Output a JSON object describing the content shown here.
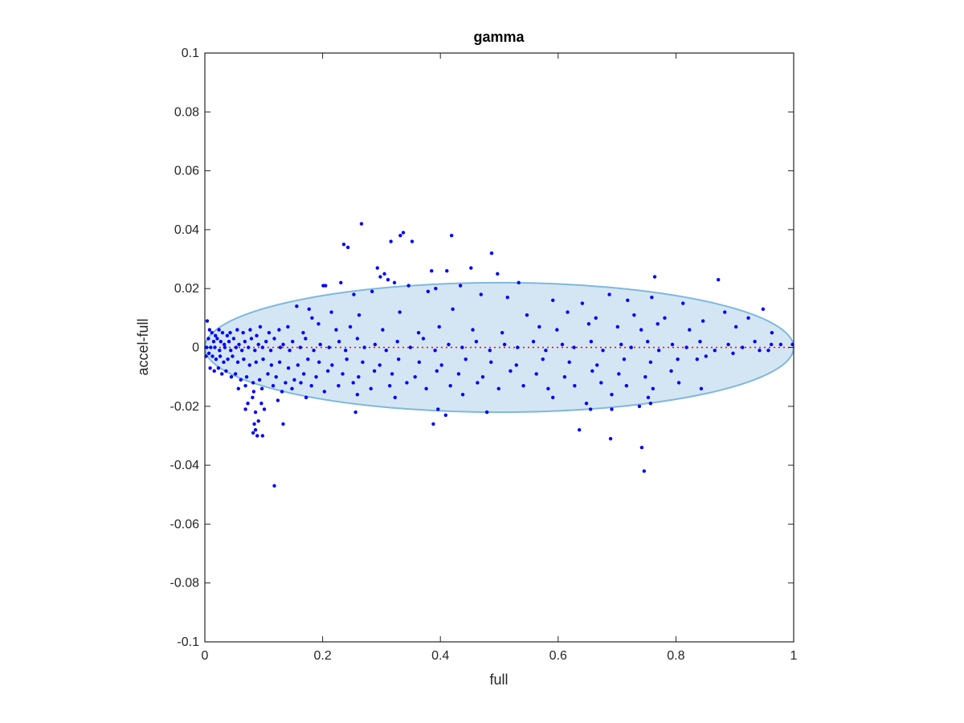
{
  "chart_data": {
    "type": "scatter",
    "title": "gamma",
    "xlabel": "full",
    "ylabel": "accel-full",
    "xlim": [
      0,
      1
    ],
    "ylim": [
      -0.1,
      0.1
    ],
    "x_ticks": [
      0,
      0.2,
      0.4,
      0.6,
      0.8,
      1
    ],
    "x_tick_labels": [
      "0",
      "0.2",
      "0.4",
      "0.6",
      "0.8",
      "1"
    ],
    "y_ticks": [
      -0.1,
      -0.08,
      -0.06,
      -0.04,
      -0.02,
      0,
      0.02,
      0.04,
      0.06,
      0.08,
      0.1
    ],
    "y_tick_labels": [
      "-0.1",
      "-0.08",
      "-0.06",
      "-0.04",
      "-0.02",
      "0",
      "0.02",
      "0.04",
      "0.06",
      "0.08",
      "0.1"
    ],
    "grid": false,
    "colors": {
      "points": "#0000ff",
      "ellipse_fill": "#d4e6f3",
      "ellipse_stroke": "#7fb8dc",
      "reference_line": "#ff0000"
    },
    "ellipse": {
      "center": [
        0.5,
        0
      ],
      "semi_x": 0.5,
      "semi_y": 0.022
    },
    "reference_line": {
      "y": 0,
      "x": [
        0,
        1
      ],
      "style": "dotted"
    },
    "series": [
      {
        "points": [
          [
            0.266,
            0.042
          ],
          [
            0.337,
            0.039
          ],
          [
            0.332,
            0.038
          ],
          [
            0.419,
            0.038
          ],
          [
            0.352,
            0.036
          ],
          [
            0.236,
            0.035
          ],
          [
            0.243,
            0.034
          ],
          [
            0.316,
            0.036
          ],
          [
            0.487,
            0.032
          ],
          [
            0.293,
            0.027
          ],
          [
            0.452,
            0.027
          ],
          [
            0.385,
            0.026
          ],
          [
            0.411,
            0.026
          ],
          [
            0.497,
            0.025
          ],
          [
            0.764,
            0.024
          ],
          [
            0.872,
            0.023
          ],
          [
            0.305,
            0.025
          ],
          [
            0.311,
            0.023
          ],
          [
            0.231,
            0.022
          ],
          [
            0.201,
            0.021
          ],
          [
            0.205,
            0.021
          ],
          [
            0.298,
            0.024
          ],
          [
            0.322,
            0.022
          ],
          [
            0.533,
            0.022
          ],
          [
            0.434,
            0.021
          ],
          [
            0.392,
            0.02
          ],
          [
            0.346,
            0.021
          ],
          [
            0.284,
            0.019
          ],
          [
            0.253,
            0.018
          ],
          [
            0.379,
            0.019
          ],
          [
            0.469,
            0.018
          ],
          [
            0.514,
            0.017
          ],
          [
            0.591,
            0.016
          ],
          [
            0.641,
            0.015
          ],
          [
            0.687,
            0.018
          ],
          [
            0.718,
            0.016
          ],
          [
            0.759,
            0.017
          ],
          [
            0.812,
            0.015
          ],
          [
            0.948,
            0.013
          ],
          [
            0.883,
            0.012
          ],
          [
            0.923,
            0.01
          ],
          [
            0.156,
            0.014
          ],
          [
            0.177,
            0.013
          ],
          [
            0.182,
            0.01
          ],
          [
            0.215,
            0.012
          ],
          [
            0.262,
            0.011
          ],
          [
            0.331,
            0.012
          ],
          [
            0.421,
            0.013
          ],
          [
            0.547,
            0.011
          ],
          [
            0.616,
            0.012
          ],
          [
            0.664,
            0.01
          ],
          [
            0.729,
            0.011
          ],
          [
            0.769,
            0.008
          ],
          [
            0.846,
            0.009
          ],
          [
            0.781,
            0.01
          ],
          [
            0.902,
            0.007
          ],
          [
            0.963,
            0.005
          ],
          [
            0.962,
            0.001
          ],
          [
            0.998,
            0.001
          ],
          [
            0.823,
            0.006
          ],
          [
            0.741,
            0.006
          ],
          [
            0.701,
            0.007
          ],
          [
            0.652,
            0.008
          ],
          [
            0.598,
            0.006
          ],
          [
            0.568,
            0.007
          ],
          [
            0.505,
            0.005
          ],
          [
            0.455,
            0.006
          ],
          [
            0.398,
            0.007
          ],
          [
            0.363,
            0.005
          ],
          [
            0.302,
            0.006
          ],
          [
            0.247,
            0.007
          ],
          [
            0.223,
            0.006
          ],
          [
            0.193,
            0.008
          ],
          [
            0.167,
            0.005
          ],
          [
            0.141,
            0.007
          ],
          [
            0.126,
            0.006
          ],
          [
            0.109,
            0.005
          ],
          [
            0.094,
            0.007
          ],
          [
            0.088,
            0.004
          ],
          [
            0.077,
            0.006
          ],
          [
            0.065,
            0.005
          ],
          [
            0.055,
            0.006
          ],
          [
            0.043,
            0.005
          ],
          [
            0.038,
            0.004
          ],
          [
            0.03,
            0.005
          ],
          [
            0.024,
            0.006
          ],
          [
            0.018,
            0.004
          ],
          [
            0.012,
            0.005
          ],
          [
            0.008,
            0.006
          ],
          [
            0.004,
            0.009
          ],
          [
            0.006,
            0.003
          ],
          [
            0.015,
            0.002
          ],
          [
            0.021,
            0.003
          ],
          [
            0.027,
            0.002
          ],
          [
            0.033,
            0.001
          ],
          [
            0.041,
            0.002
          ],
          [
            0.049,
            0.003
          ],
          [
            0.058,
            0.001
          ],
          [
            0.068,
            0.002
          ],
          [
            0.079,
            0.003
          ],
          [
            0.091,
            0.001
          ],
          [
            0.104,
            0.002
          ],
          [
            0.118,
            0.003
          ],
          [
            0.133,
            0.001
          ],
          [
            0.149,
            0.002
          ],
          [
            0.171,
            0.003
          ],
          [
            0.196,
            0.001
          ],
          [
            0.228,
            0.002
          ],
          [
            0.259,
            0.003
          ],
          [
            0.289,
            0.001
          ],
          [
            0.327,
            0.002
          ],
          [
            0.371,
            0.003
          ],
          [
            0.414,
            0.001
          ],
          [
            0.461,
            0.002
          ],
          [
            0.509,
            0.001
          ],
          [
            0.558,
            0.002
          ],
          [
            0.607,
            0.001
          ],
          [
            0.656,
            0.002
          ],
          [
            0.707,
            0.001
          ],
          [
            0.752,
            0.002
          ],
          [
            0.794,
            0.001
          ],
          [
            0.841,
            0.002
          ],
          [
            0.889,
            0.001
          ],
          [
            0.934,
            0.002
          ],
          [
            0.978,
            0.001
          ],
          [
            0.003,
            0.0
          ],
          [
            0.01,
            0.0
          ],
          [
            0.017,
            0.0
          ],
          [
            0.025,
            -0.001
          ],
          [
            0.034,
            0.0
          ],
          [
            0.044,
            -0.001
          ],
          [
            0.053,
            0.0
          ],
          [
            0.063,
            -0.001
          ],
          [
            0.074,
            0.0
          ],
          [
            0.085,
            -0.001
          ],
          [
            0.098,
            0.0
          ],
          [
            0.112,
            -0.001
          ],
          [
            0.128,
            0.0
          ],
          [
            0.144,
            -0.001
          ],
          [
            0.162,
            0.0
          ],
          [
            0.185,
            -0.001
          ],
          [
            0.211,
            0.0
          ],
          [
            0.239,
            -0.001
          ],
          [
            0.271,
            0.0
          ],
          [
            0.308,
            -0.001
          ],
          [
            0.349,
            0.0
          ],
          [
            0.391,
            -0.001
          ],
          [
            0.437,
            0.0
          ],
          [
            0.484,
            -0.001
          ],
          [
            0.531,
            0.0
          ],
          [
            0.579,
            -0.001
          ],
          [
            0.627,
            0.0
          ],
          [
            0.676,
            -0.001
          ],
          [
            0.724,
            0.0
          ],
          [
            0.771,
            -0.001
          ],
          [
            0.818,
            0.0
          ],
          [
            0.866,
            -0.001
          ],
          [
            0.913,
            0.0
          ],
          [
            0.957,
            -0.001
          ],
          [
            0.002,
            -0.003
          ],
          [
            0.007,
            -0.002
          ],
          [
            0.013,
            -0.003
          ],
          [
            0.019,
            -0.004
          ],
          [
            0.026,
            -0.003
          ],
          [
            0.032,
            -0.005
          ],
          [
            0.039,
            -0.004
          ],
          [
            0.047,
            -0.003
          ],
          [
            0.056,
            -0.005
          ],
          [
            0.066,
            -0.004
          ],
          [
            0.076,
            -0.006
          ],
          [
            0.087,
            -0.005
          ],
          [
            0.099,
            -0.004
          ],
          [
            0.113,
            -0.006
          ],
          [
            0.127,
            -0.005
          ],
          [
            0.142,
            -0.007
          ],
          [
            0.158,
            -0.006
          ],
          [
            0.175,
            -0.004
          ],
          [
            0.194,
            -0.005
          ],
          [
            0.216,
            -0.006
          ],
          [
            0.241,
            -0.004
          ],
          [
            0.268,
            -0.005
          ],
          [
            0.297,
            -0.006
          ],
          [
            0.329,
            -0.004
          ],
          [
            0.364,
            -0.005
          ],
          [
            0.402,
            -0.006
          ],
          [
            0.443,
            -0.004
          ],
          [
            0.486,
            -0.005
          ],
          [
            0.529,
            -0.006
          ],
          [
            0.574,
            -0.004
          ],
          [
            0.619,
            -0.005
          ],
          [
            0.666,
            -0.006
          ],
          [
            0.712,
            -0.004
          ],
          [
            0.757,
            -0.005
          ],
          [
            0.803,
            -0.004
          ],
          [
            0.851,
            -0.003
          ],
          [
            0.897,
            -0.002
          ],
          [
            0.942,
            -0.001
          ],
          [
            0.009,
            -0.007
          ],
          [
            0.016,
            -0.008
          ],
          [
            0.023,
            -0.007
          ],
          [
            0.029,
            -0.009
          ],
          [
            0.036,
            -0.008
          ],
          [
            0.045,
            -0.01
          ],
          [
            0.052,
            -0.009
          ],
          [
            0.061,
            -0.011
          ],
          [
            0.071,
            -0.01
          ],
          [
            0.082,
            -0.012
          ],
          [
            0.093,
            -0.011
          ],
          [
            0.107,
            -0.009
          ],
          [
            0.121,
            -0.01
          ],
          [
            0.137,
            -0.012
          ],
          [
            0.152,
            -0.011
          ],
          [
            0.168,
            -0.009
          ],
          [
            0.189,
            -0.01
          ],
          [
            0.209,
            -0.008
          ],
          [
            0.234,
            -0.009
          ],
          [
            0.261,
            -0.01
          ],
          [
            0.288,
            -0.008
          ],
          [
            0.318,
            -0.009
          ],
          [
            0.357,
            -0.01
          ],
          [
            0.394,
            -0.008
          ],
          [
            0.431,
            -0.009
          ],
          [
            0.472,
            -0.01
          ],
          [
            0.519,
            -0.008
          ],
          [
            0.563,
            -0.009
          ],
          [
            0.611,
            -0.01
          ],
          [
            0.658,
            -0.008
          ],
          [
            0.703,
            -0.009
          ],
          [
            0.748,
            -0.01
          ],
          [
            0.792,
            -0.008
          ],
          [
            0.836,
            -0.004
          ],
          [
            0.057,
            -0.014
          ],
          [
            0.069,
            -0.013
          ],
          [
            0.083,
            -0.015
          ],
          [
            0.097,
            -0.014
          ],
          [
            0.116,
            -0.013
          ],
          [
            0.131,
            -0.015
          ],
          [
            0.148,
            -0.014
          ],
          [
            0.163,
            -0.012
          ],
          [
            0.181,
            -0.013
          ],
          [
            0.203,
            -0.015
          ],
          [
            0.227,
            -0.013
          ],
          [
            0.252,
            -0.012
          ],
          [
            0.282,
            -0.014
          ],
          [
            0.314,
            -0.013
          ],
          [
            0.343,
            -0.012
          ],
          [
            0.376,
            -0.014
          ],
          [
            0.417,
            -0.013
          ],
          [
            0.463,
            -0.012
          ],
          [
            0.499,
            -0.014
          ],
          [
            0.541,
            -0.013
          ],
          [
            0.583,
            -0.014
          ],
          [
            0.628,
            -0.013
          ],
          [
            0.673,
            -0.012
          ],
          [
            0.716,
            -0.013
          ],
          [
            0.761,
            -0.014
          ],
          [
            0.805,
            -0.012
          ],
          [
            0.843,
            -0.014
          ],
          [
            0.081,
            -0.017
          ],
          [
            0.096,
            -0.019
          ],
          [
            0.124,
            -0.018
          ],
          [
            0.172,
            -0.017
          ],
          [
            0.259,
            -0.016
          ],
          [
            0.323,
            -0.017
          ],
          [
            0.438,
            -0.016
          ],
          [
            0.591,
            -0.017
          ],
          [
            0.691,
            -0.016
          ],
          [
            0.753,
            -0.017
          ],
          [
            0.648,
            -0.019
          ],
          [
            0.757,
            -0.019
          ],
          [
            0.738,
            -0.02
          ],
          [
            0.069,
            -0.021
          ],
          [
            0.073,
            -0.019
          ],
          [
            0.086,
            -0.022
          ],
          [
            0.101,
            -0.021
          ],
          [
            0.256,
            -0.022
          ],
          [
            0.396,
            -0.021
          ],
          [
            0.479,
            -0.022
          ],
          [
            0.655,
            -0.021
          ],
          [
            0.691,
            -0.021
          ],
          [
            0.084,
            -0.026
          ],
          [
            0.091,
            -0.025
          ],
          [
            0.086,
            -0.028
          ],
          [
            0.082,
            -0.029
          ],
          [
            0.089,
            -0.03
          ],
          [
            0.098,
            -0.03
          ],
          [
            0.133,
            -0.026
          ],
          [
            0.388,
            -0.026
          ],
          [
            0.409,
            -0.023
          ],
          [
            0.636,
            -0.028
          ],
          [
            0.689,
            -0.031
          ],
          [
            0.742,
            -0.034
          ],
          [
            0.746,
            -0.042
          ],
          [
            0.118,
            -0.047
          ]
        ]
      }
    ]
  }
}
